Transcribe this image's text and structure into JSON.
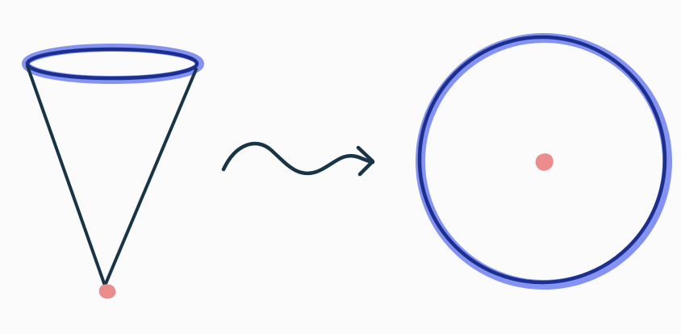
{
  "diagram": {
    "description_free": true,
    "elements": [
      {
        "id": "cone",
        "kind": "cone"
      },
      {
        "id": "arrow",
        "kind": "wavy-arrow"
      },
      {
        "id": "disk",
        "kind": "circle"
      }
    ]
  },
  "colors": {
    "background": "#fbfbfc",
    "outline": "#183548",
    "rim": "#1a2f8f",
    "rim_highlight": "#6f7ff0",
    "apex_point": "#ec8d8d",
    "center_point": "#ec8d8d"
  }
}
